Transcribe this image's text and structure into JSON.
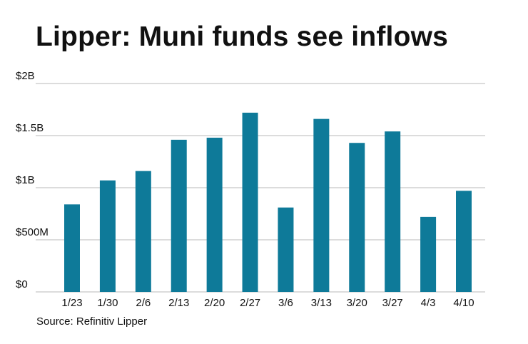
{
  "chart_data": {
    "type": "bar",
    "title": "Lipper: Muni funds see inflows",
    "categories": [
      "1/23",
      "1/30",
      "2/6",
      "2/13",
      "2/20",
      "2/27",
      "3/6",
      "3/13",
      "3/20",
      "3/27",
      "4/3",
      "4/10"
    ],
    "series": [
      {
        "values": [
          0.84,
          1.07,
          1.16,
          1.46,
          1.48,
          1.72,
          0.81,
          1.66,
          1.43,
          1.54,
          0.72,
          0.97
        ]
      }
    ],
    "y_ticks": [
      "$0",
      "$500M",
      "$1B",
      "$1.5B",
      "$2B"
    ],
    "y_tick_values": [
      0,
      0.5,
      1.0,
      1.5,
      2.0
    ],
    "ylim": [
      0,
      2.0
    ],
    "grid": true,
    "bar_color": "#0e7a99",
    "grid_color": "#c8c8c8",
    "source": "Source: Refinitiv Lipper"
  }
}
